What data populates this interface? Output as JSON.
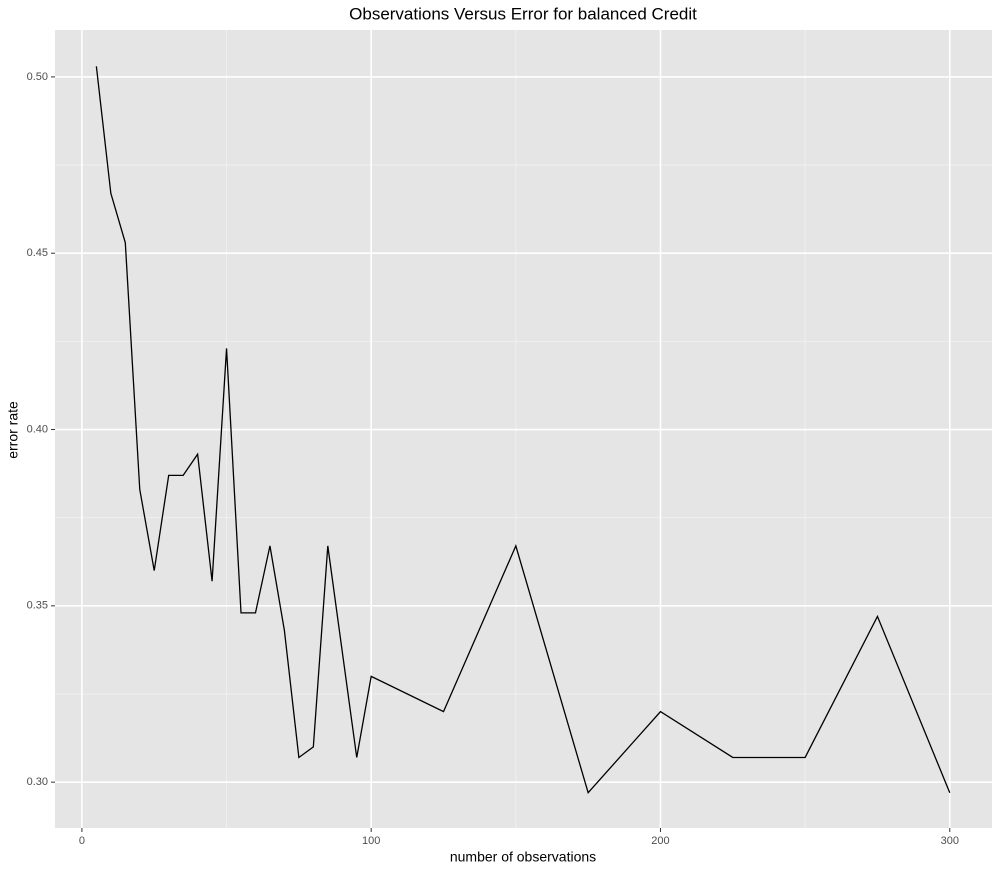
{
  "chart_data": {
    "type": "line",
    "title": "Observations Versus Error for balanced Credit",
    "x_label": "number of observations",
    "y_label": "error rate",
    "x": [
      5,
      10,
      15,
      20,
      25,
      30,
      35,
      40,
      45,
      50,
      55,
      60,
      65,
      70,
      75,
      80,
      85,
      95,
      100,
      125,
      150,
      175,
      200,
      225,
      250,
      275,
      300
    ],
    "series": [
      {
        "color": "#000000",
        "values": [
          0.503,
          0.467,
          0.453,
          0.383,
          0.36,
          0.387,
          0.387,
          0.393,
          0.357,
          0.423,
          0.348,
          0.348,
          0.367,
          0.343,
          0.307,
          0.31,
          0.367,
          0.307,
          0.33,
          0.32,
          0.367,
          0.297,
          0.32,
          0.307,
          0.307,
          0.347,
          0.297
        ]
      }
    ],
    "xlim": [
      -9.3,
      314.6
    ],
    "ylim": [
      0.287,
      0.5133
    ],
    "xticks": [
      0,
      100,
      200,
      300
    ],
    "yticks": [
      {
        "value": 0.3,
        "label": "0.30"
      },
      0.35,
      {
        "value": 0.4,
        "label": "0.40"
      },
      0.45,
      {
        "value": 0.5,
        "label": "0.50"
      }
    ],
    "grid": true
  }
}
